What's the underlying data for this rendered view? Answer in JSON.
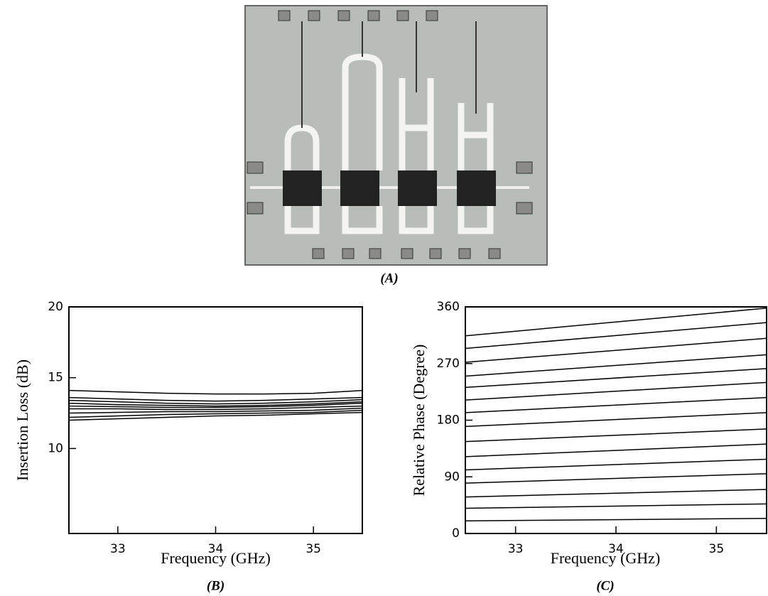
{
  "photo": {
    "caption": "(A)"
  },
  "chart_data": [
    {
      "type": "line",
      "caption": "(B)",
      "x_label": "Frequency  (GHz)",
      "y_label": "Insertion Loss  (dB)",
      "xlim": [
        32.5,
        35.5
      ],
      "xticks": [
        33,
        34,
        35
      ],
      "ylim": [
        4,
        20
      ],
      "yticks": [
        10,
        15,
        20
      ],
      "x": [
        32.5,
        33,
        33.5,
        34,
        34.5,
        35,
        35.5
      ],
      "series": [
        {
          "color": "#000000",
          "values": [
            14.1,
            14.0,
            13.9,
            13.85,
            13.85,
            13.9,
            14.1
          ]
        },
        {
          "color": "#000000",
          "values": [
            13.6,
            13.5,
            13.4,
            13.35,
            13.4,
            13.5,
            13.6
          ]
        },
        {
          "color": "#000000",
          "values": [
            13.4,
            13.3,
            13.2,
            13.15,
            13.2,
            13.3,
            13.45
          ]
        },
        {
          "color": "#000000",
          "values": [
            13.2,
            13.1,
            13.05,
            13.0,
            13.05,
            13.15,
            13.3
          ]
        },
        {
          "color": "#000000",
          "values": [
            13.0,
            12.95,
            12.9,
            12.9,
            12.95,
            13.05,
            13.2
          ]
        },
        {
          "color": "#000000",
          "values": [
            12.8,
            12.8,
            12.75,
            12.75,
            12.8,
            12.9,
            13.0
          ]
        },
        {
          "color": "#000000",
          "values": [
            12.5,
            12.55,
            12.6,
            12.6,
            12.65,
            12.7,
            12.85
          ]
        },
        {
          "color": "#000000",
          "values": [
            12.2,
            12.3,
            12.4,
            12.45,
            12.5,
            12.55,
            12.7
          ]
        },
        {
          "color": "#000000",
          "values": [
            12.0,
            12.1,
            12.2,
            12.3,
            12.35,
            12.45,
            12.55
          ]
        }
      ]
    },
    {
      "type": "line",
      "caption": "(C)",
      "x_label": "Frequency  (GHz)",
      "y_label": "Relative Phase  (Degree)",
      "xlim": [
        32.5,
        35.5
      ],
      "xticks": [
        33,
        34,
        35
      ],
      "ylim": [
        0,
        360
      ],
      "yticks": [
        0,
        90,
        180,
        270,
        360
      ],
      "x": [
        32.5,
        35.5
      ],
      "series": [
        {
          "color": "#000000",
          "values": [
            20,
            24
          ]
        },
        {
          "color": "#000000",
          "values": [
            40,
            47
          ]
        },
        {
          "color": "#000000",
          "values": [
            58,
            70
          ]
        },
        {
          "color": "#000000",
          "values": [
            80,
            95
          ]
        },
        {
          "color": "#000000",
          "values": [
            101,
            118
          ]
        },
        {
          "color": "#000000",
          "values": [
            122,
            142
          ]
        },
        {
          "color": "#000000",
          "values": [
            146,
            166
          ]
        },
        {
          "color": "#000000",
          "values": [
            170,
            192
          ]
        },
        {
          "color": "#000000",
          "values": [
            192,
            216
          ]
        },
        {
          "color": "#000000",
          "values": [
            212,
            240
          ]
        },
        {
          "color": "#000000",
          "values": [
            232,
            262
          ]
        },
        {
          "color": "#000000",
          "values": [
            250,
            284
          ]
        },
        {
          "color": "#000000",
          "values": [
            272,
            310
          ]
        },
        {
          "color": "#000000",
          "values": [
            294,
            335
          ]
        },
        {
          "color": "#000000",
          "values": [
            314,
            358
          ]
        }
      ]
    }
  ]
}
